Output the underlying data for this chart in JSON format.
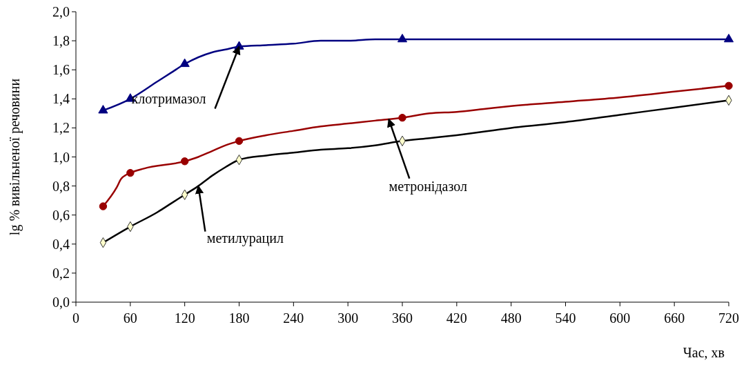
{
  "chart_data": {
    "type": "line",
    "xlabel": "Час, хв",
    "ylabel": "lg % вивільненої речовини",
    "xlim": [
      0,
      720
    ],
    "xticks": [
      0,
      60,
      120,
      180,
      240,
      300,
      360,
      420,
      480,
      540,
      600,
      660,
      720
    ],
    "ylim": [
      0,
      2
    ],
    "yticks": [
      {
        "value": 0,
        "label": "0,0"
      },
      {
        "value": 0.2,
        "label": "0,2"
      },
      {
        "value": 0.4,
        "label": "0,4"
      },
      {
        "value": 0.6,
        "label": "0,6"
      },
      {
        "value": 0.8,
        "label": "0,8"
      },
      {
        "value": 1,
        "label": "1,0"
      },
      {
        "value": 1.2,
        "label": "1,2"
      },
      {
        "value": 1.4,
        "label": "1,4"
      },
      {
        "value": 1.6,
        "label": "1,6"
      },
      {
        "value": 1.8,
        "label": "1,8"
      },
      {
        "value": 2,
        "label": "2,0"
      }
    ],
    "grid": false,
    "series": [
      {
        "marker": "none",
        "color": "#000080",
        "x": [
          30,
          60,
          90,
          105,
          120,
          150,
          165,
          180,
          210,
          240,
          270,
          300,
          330,
          360,
          720
        ],
        "values": [
          1.32,
          1.4,
          1.52,
          1.58,
          1.64,
          1.72,
          1.74,
          1.76,
          1.77,
          1.78,
          1.8,
          1.8,
          1.81,
          1.81,
          1.81
        ]
      },
      {
        "marker": "none",
        "color": "#990000",
        "x": [
          30,
          45,
          50,
          60,
          75,
          120,
          135,
          150,
          165,
          180,
          210,
          240,
          270,
          300,
          330,
          360,
          390,
          420,
          450,
          480,
          540,
          600,
          660,
          720
        ],
        "values": [
          0.66,
          0.79,
          0.85,
          0.89,
          0.92,
          0.97,
          1.0,
          1.04,
          1.08,
          1.11,
          1.15,
          1.18,
          1.21,
          1.23,
          1.25,
          1.27,
          1.3,
          1.31,
          1.33,
          1.35,
          1.38,
          1.41,
          1.45,
          1.49
        ]
      },
      {
        "marker": "none",
        "color": "#000000",
        "x": [
          30,
          60,
          90,
          105,
          120,
          135,
          150,
          165,
          180,
          210,
          240,
          270,
          300,
          330,
          360,
          390,
          420,
          480,
          540,
          600,
          660,
          720
        ],
        "values": [
          0.41,
          0.52,
          0.62,
          0.68,
          0.74,
          0.8,
          0.87,
          0.93,
          0.98,
          1.01,
          1.03,
          1.05,
          1.06,
          1.08,
          1.11,
          1.13,
          1.15,
          1.2,
          1.24,
          1.29,
          1.34,
          1.39
        ]
      },
      {
        "type": "scatter",
        "marker": "triangle",
        "color": "#000080",
        "x": [
          30,
          60,
          120,
          180,
          360,
          720
        ],
        "values": [
          1.32,
          1.4,
          1.64,
          1.76,
          1.81,
          1.81
        ]
      },
      {
        "type": "scatter",
        "marker": "circle",
        "color": "#990000",
        "x": [
          30,
          60,
          120,
          180,
          360,
          720
        ],
        "values": [
          0.66,
          0.89,
          0.97,
          1.11,
          1.27,
          1.49
        ]
      },
      {
        "type": "scatter",
        "marker": "diamond",
        "color": "#ffffcc",
        "x": [
          30,
          60,
          120,
          180,
          360,
          720
        ],
        "values": [
          0.41,
          0.52,
          0.74,
          0.98,
          1.11,
          1.39
        ]
      }
    ],
    "annotations": [
      {
        "text": "клотримазол",
        "x": 180,
        "y": 1.76
      },
      {
        "text": "метронідазол",
        "x": 345,
        "y": 1.26
      },
      {
        "text": "метилурацил",
        "x": 135,
        "y": 0.8
      }
    ]
  }
}
